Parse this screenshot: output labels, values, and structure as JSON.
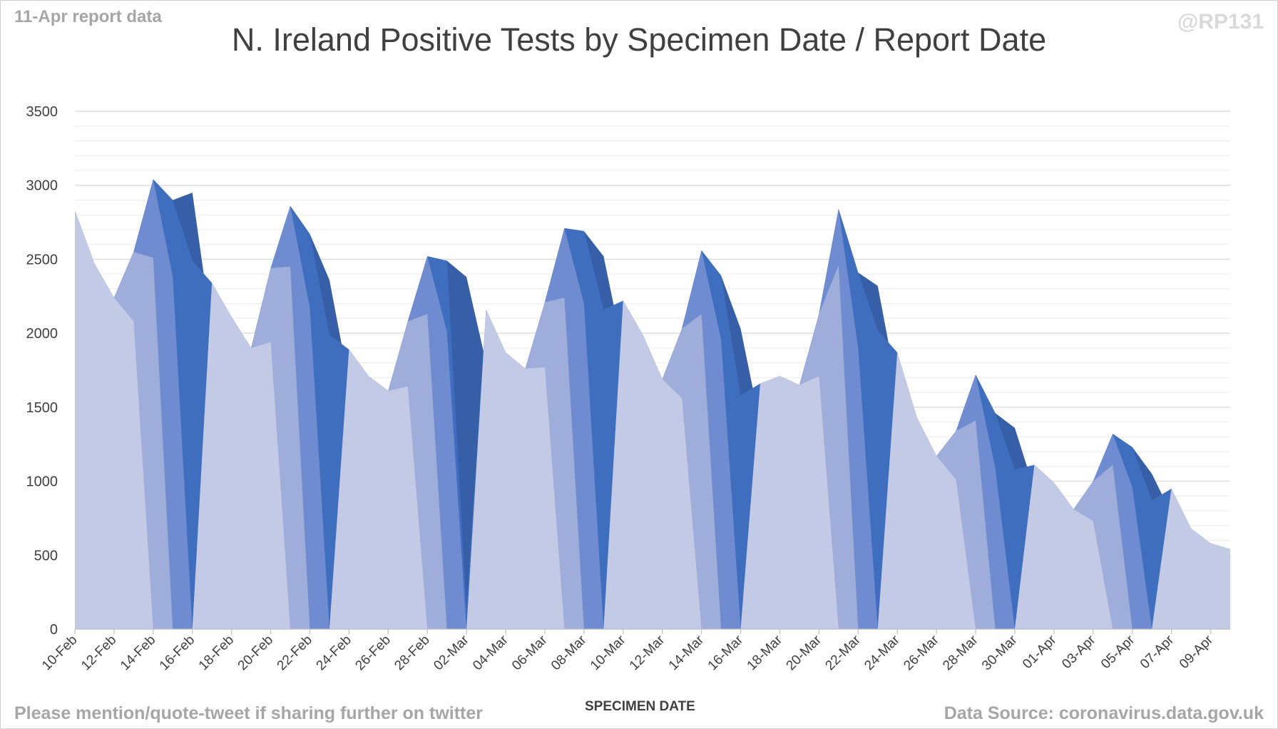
{
  "header": {
    "report_note": "11-Apr report data",
    "handle": "@RP131",
    "title": "N. Ireland Positive Tests by Specimen Date / Report Date"
  },
  "footer": {
    "share_note": "Please mention/quote-tweet if sharing further on twitter",
    "source": "Data Source: coronavirus.data.gov.uk"
  },
  "colors": {
    "light": "#c2cae5",
    "light_mid": "#9fadda",
    "mid": "#6e8ccf",
    "blue": "#3f6ebf",
    "dark": "#375fa8",
    "grid_major": "#d9d9d9",
    "grid_minor": "#ececec"
  },
  "chart_data": {
    "type": "area",
    "title": "N. Ireland Positive Tests by Specimen Date / Report Date",
    "xlabel": "SPECIMEN DATE",
    "ylabel": "",
    "ylim": [
      0,
      3500
    ],
    "yticks": [
      0,
      500,
      1000,
      1500,
      2000,
      2500,
      3000,
      3500
    ],
    "grid": true,
    "legend": "none",
    "x_tick_labels": [
      "10-Feb",
      "12-Feb",
      "14-Feb",
      "16-Feb",
      "18-Feb",
      "20-Feb",
      "22-Feb",
      "24-Feb",
      "26-Feb",
      "28-Feb",
      "02-Mar",
      "04-Mar",
      "06-Mar",
      "08-Mar",
      "10-Mar",
      "12-Mar",
      "14-Mar",
      "16-Mar",
      "18-Mar",
      "20-Mar",
      "22-Mar",
      "24-Mar",
      "26-Mar",
      "28-Mar",
      "30-Mar",
      "01-Apr",
      "03-Apr",
      "05-Apr",
      "07-Apr",
      "09-Apr"
    ],
    "categories": [
      "10-Feb",
      "11-Feb",
      "12-Feb",
      "13-Feb",
      "14-Feb",
      "15-Feb",
      "16-Feb",
      "17-Feb",
      "18-Feb",
      "19-Feb",
      "20-Feb",
      "21-Feb",
      "22-Feb",
      "23-Feb",
      "24-Feb",
      "25-Feb",
      "26-Feb",
      "27-Feb",
      "28-Feb",
      "01-Mar",
      "02-Mar",
      "03-Mar",
      "04-Mar",
      "05-Mar",
      "06-Mar",
      "07-Mar",
      "08-Mar",
      "09-Mar",
      "10-Mar",
      "11-Mar",
      "12-Mar",
      "13-Mar",
      "14-Mar",
      "15-Mar",
      "16-Mar",
      "17-Mar",
      "18-Mar",
      "19-Mar",
      "20-Mar",
      "21-Mar",
      "22-Mar",
      "23-Mar",
      "24-Mar",
      "25-Mar",
      "26-Mar",
      "27-Mar",
      "28-Mar",
      "29-Mar",
      "30-Mar",
      "31-Mar",
      "01-Apr",
      "02-Apr",
      "03-Apr",
      "04-Apr",
      "05-Apr",
      "06-Apr",
      "07-Apr",
      "08-Apr",
      "09-Apr",
      "10-Apr"
    ],
    "totals": [
      2830,
      2470,
      2240,
      2550,
      3040,
      2900,
      2950,
      2340,
      2110,
      1900,
      2440,
      2860,
      2670,
      2360,
      1890,
      1710,
      1610,
      2080,
      2520,
      2490,
      2380,
      2160,
      1870,
      1760,
      2210,
      2710,
      2690,
      2520,
      2220,
      1990,
      1690,
      2030,
      2560,
      2390,
      2030,
      1660,
      1710,
      1650,
      2130,
      2840,
      2410,
      2320,
      1870,
      1430,
      1170,
      1340,
      1720,
      1460,
      1360,
      1110,
      990,
      810,
      1000,
      1320,
      1230,
      1050,
      950,
      680,
      580,
      540
    ],
    "layer_edges": [
      {
        "shade": "light",
        "y": [
          2830,
          2470,
          2240,
          2080,
          0,
          0,
          0,
          2340,
          2110,
          1900,
          1940,
          0,
          0,
          0,
          1890,
          1710,
          1610,
          1640,
          0,
          0,
          0,
          2160,
          1870,
          1760,
          1770,
          0,
          0,
          0,
          2220,
          1990,
          1690,
          1560,
          0,
          0,
          0,
          1660,
          1710,
          1650,
          1710,
          0,
          0,
          0,
          1870,
          1430,
          1170,
          1010,
          0,
          0,
          0,
          1110,
          990,
          810,
          730,
          0,
          0,
          0,
          950,
          680,
          580,
          540
        ]
      },
      {
        "shade": "light_mid",
        "y": [
          2830,
          2470,
          2240,
          2550,
          2510,
          0,
          0,
          2340,
          2110,
          1900,
          2440,
          2450,
          0,
          0,
          1890,
          1710,
          1610,
          2080,
          2130,
          0,
          0,
          2160,
          1870,
          1760,
          2210,
          2240,
          0,
          0,
          2220,
          1990,
          1690,
          2030,
          2130,
          0,
          0,
          1660,
          1710,
          1650,
          2130,
          2460,
          0,
          0,
          1870,
          1430,
          1170,
          1340,
          1410,
          0,
          0,
          1110,
          990,
          810,
          1000,
          1110,
          0,
          0,
          950,
          680,
          580,
          540
        ]
      },
      {
        "shade": "mid",
        "y": [
          2830,
          2470,
          2240,
          2550,
          3040,
          2380,
          0,
          2340,
          2110,
          1900,
          2440,
          2860,
          2170,
          0,
          1890,
          1710,
          1610,
          2080,
          2520,
          2010,
          0,
          2160,
          1870,
          1760,
          2210,
          2710,
          2200,
          0,
          2220,
          1990,
          1690,
          2030,
          2560,
          1960,
          0,
          1660,
          1710,
          1650,
          2130,
          2840,
          1900,
          0,
          1870,
          1430,
          1170,
          1340,
          1720,
          1090,
          0,
          1110,
          990,
          810,
          1000,
          1320,
          960,
          0,
          950,
          680,
          580,
          540
        ]
      },
      {
        "shade": "blue",
        "y": [
          2830,
          2470,
          2240,
          2550,
          3040,
          2900,
          2490,
          2340,
          2110,
          1900,
          2440,
          2860,
          2670,
          1990,
          1890,
          1710,
          1610,
          2080,
          2520,
          2490,
          140,
          2160,
          1870,
          1760,
          2210,
          2710,
          2690,
          2160,
          2220,
          1990,
          1690,
          2030,
          2560,
          2390,
          1580,
          1660,
          1710,
          1650,
          2130,
          2840,
          2410,
          2020,
          1870,
          1430,
          1170,
          1340,
          1720,
          1460,
          1080,
          1110,
          990,
          810,
          1000,
          1320,
          1230,
          870,
          950,
          680,
          580,
          540
        ]
      }
    ],
    "dark_series": {
      "shade": "dark",
      "y": [
        2350,
        0,
        2240,
        2550,
        3040,
        2900,
        2950,
        2000,
        2110,
        1900,
        2440,
        2860,
        2670,
        2360,
        1660,
        1710,
        1610,
        2080,
        2520,
        2490,
        2380,
        1800,
        1870,
        1760,
        2210,
        2710,
        2690,
        2520,
        1880,
        1990,
        1690,
        2030,
        2560,
        2390,
        2030,
        1380,
        1710,
        1650,
        2130,
        2840,
        2410,
        2320,
        1620,
        1430,
        1170,
        1340,
        1720,
        1460,
        1360,
        940,
        990,
        810,
        1000,
        1320,
        1230,
        1050,
        780,
        680,
        580,
        540
      ]
    }
  }
}
